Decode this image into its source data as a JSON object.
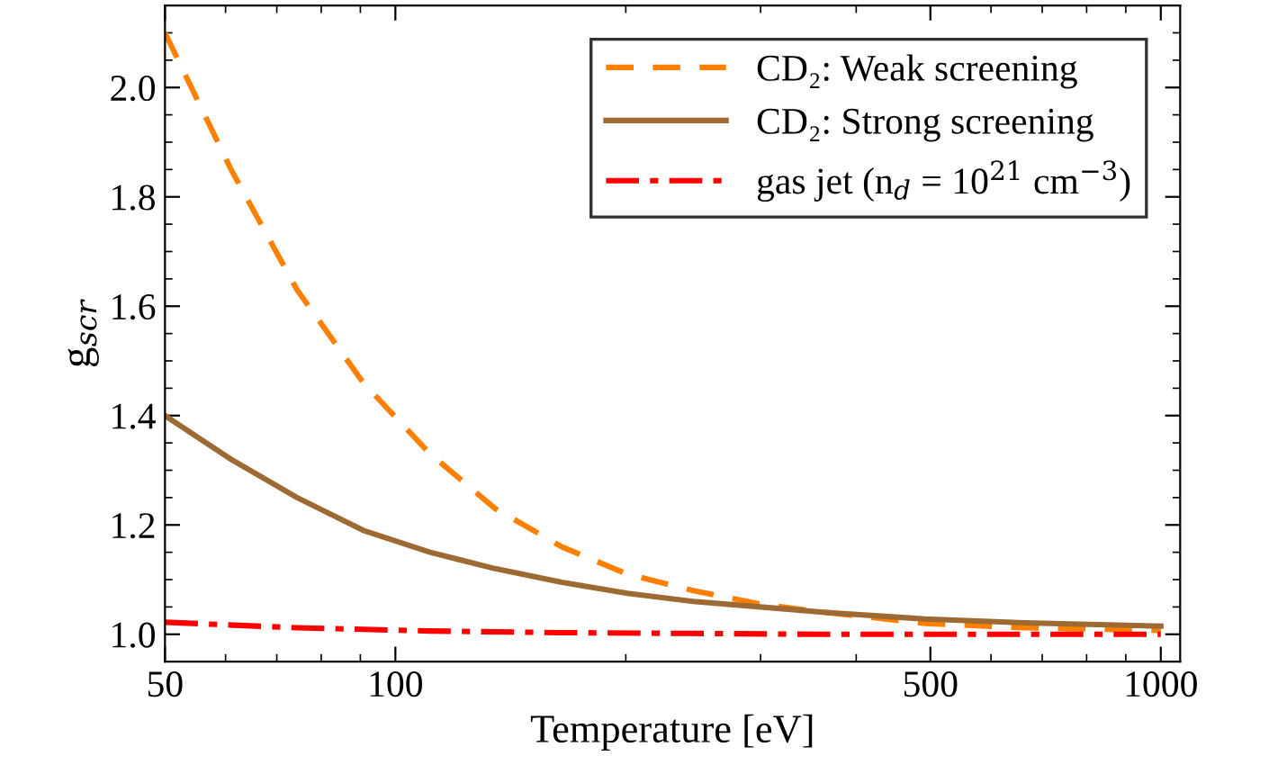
{
  "chart_data": {
    "type": "line",
    "xlabel": "Temperature [eV]",
    "ylabel": "g$_{scr}$",
    "log": "x",
    "xlim": [
      50,
      1060
    ],
    "xticks": [
      50,
      100,
      500,
      1000
    ],
    "ylim": [
      0.95,
      2.15
    ],
    "yticks": [
      {
        "value": 1.0,
        "label": "1.0"
      },
      1.2,
      1.4,
      1.6,
      1.8,
      {
        "value": 2.0,
        "label": "2.0"
      }
    ],
    "grid": false,
    "legend": "top right",
    "marker": "none",
    "series": [
      {
        "name": "CD₂: Weak screening",
        "color": "#ff8000",
        "line_style": "dashed",
        "x": [
          50,
          61,
          74.4,
          90.8,
          111,
          135,
          165,
          201,
          245,
          300,
          365,
          492,
          663,
          1000
        ],
        "values": [
          2.1,
          1.85,
          1.63,
          1.46,
          1.33,
          1.23,
          1.16,
          1.11,
          1.08,
          1.055,
          1.04,
          1.02,
          1.012,
          1.007
        ]
      },
      {
        "name": "CD₂: Strong screening",
        "color": "#9c6a32",
        "line_style": "solid",
        "x": [
          50,
          61,
          74.4,
          90.8,
          111,
          135,
          165,
          201,
          245,
          300,
          365,
          492,
          663,
          1000
        ],
        "values": [
          1.4,
          1.32,
          1.25,
          1.19,
          1.15,
          1.12,
          1.095,
          1.075,
          1.06,
          1.05,
          1.04,
          1.028,
          1.021,
          1.015
        ]
      },
      {
        "name": "gas jet (n$_{d}$ = 10$^{21}$ cm$^{−3}$)",
        "color": "#ff0000",
        "line_style": "dashdot",
        "x": [
          50,
          74.4,
          111,
          165,
          365,
          1000
        ],
        "values": [
          1.022,
          1.012,
          1.006,
          1.003,
          1.0,
          1.0
        ]
      }
    ]
  }
}
